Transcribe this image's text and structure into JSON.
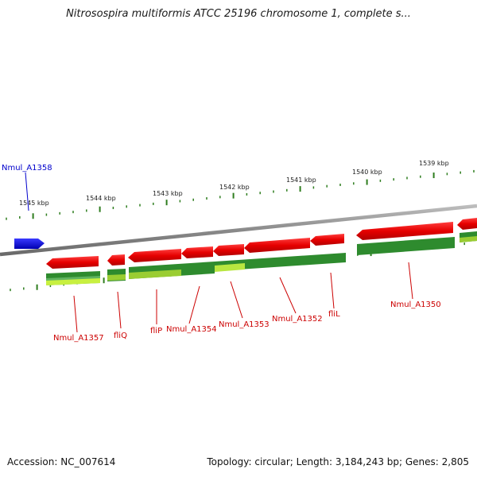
{
  "header": {
    "title": "Nitrosospira multiformis ATCC 25196 chromosome 1, complete s..."
  },
  "footer": {
    "accession": "Accession: NC_007614",
    "topology": "Topology: circular; Length: 3,184,243 bp; Genes: 2,805"
  },
  "ruler": {
    "tick_labels": [
      "1545 kbp",
      "1544 kbp",
      "1543 kbp",
      "1542 kbp",
      "1541 kbp",
      "1540 kbp",
      "1539 kbp"
    ]
  },
  "genes": {
    "highlighted": {
      "label": "Nmul_A1358",
      "color": "#0a0adc"
    },
    "labels": [
      "Nmul_A1357",
      "fliQ",
      "fliP",
      "Nmul_A1354",
      "Nmul_A1353",
      "Nmul_A1352",
      "fliL",
      "Nmul_A1350"
    ],
    "label_color": "#cc0000"
  },
  "colors": {
    "gene_forward": "#e80000",
    "track_dark_green": "#2e8b2e",
    "track_light_green": "#9acd32",
    "tick_green": "#2e7d1e",
    "backbone": "#8a8a8a"
  }
}
